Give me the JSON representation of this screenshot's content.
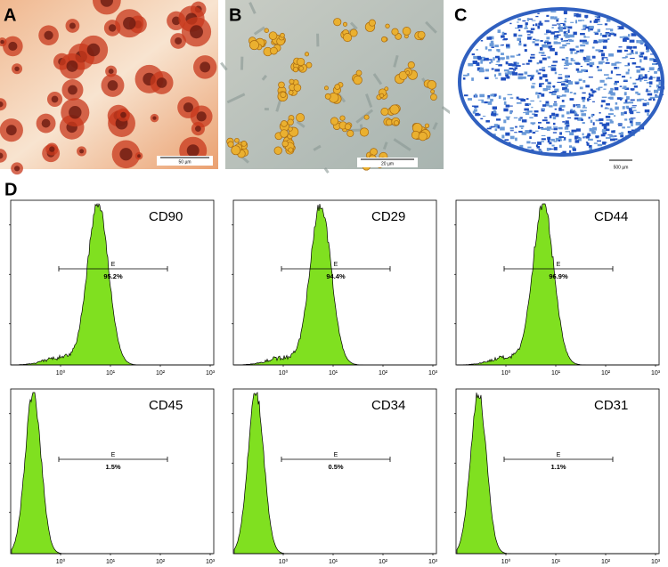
{
  "panels": [
    {
      "letter": "A",
      "scale_bar": "50 µm"
    },
    {
      "letter": "B",
      "scale_bar": "20 µm"
    },
    {
      "letter": "C",
      "scale_bar": "500 µm"
    }
  ],
  "flow": {
    "letter": "D",
    "x_tick_labels": [
      "10⁰",
      "10¹",
      "10²",
      "10³"
    ],
    "histograms": [
      {
        "marker": "CD90",
        "gate": "E",
        "percent": "95.2%"
      },
      {
        "marker": "CD29",
        "gate": "E",
        "percent": "94.4%"
      },
      {
        "marker": "CD44",
        "gate": "E",
        "percent": "96.9%"
      },
      {
        "marker": "CD45",
        "gate": "E",
        "percent": "1.5%"
      },
      {
        "marker": "CD34",
        "gate": "E",
        "percent": "0.5%"
      },
      {
        "marker": "CD31",
        "gate": "E",
        "percent": "1.1%"
      }
    ]
  }
}
